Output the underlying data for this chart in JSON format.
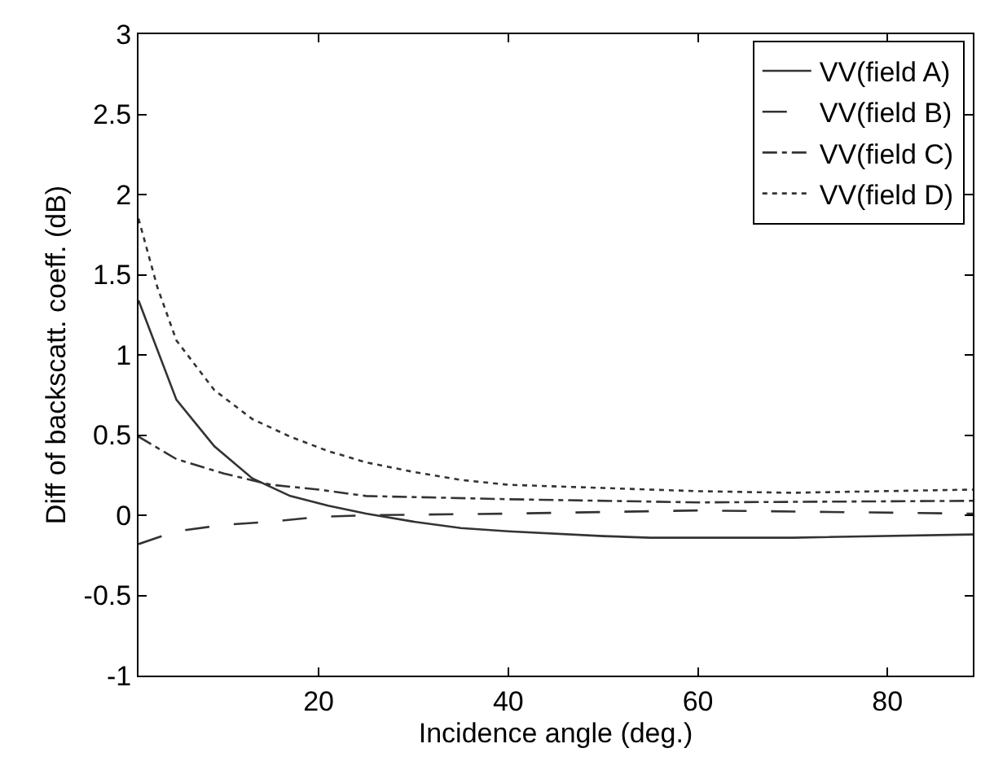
{
  "chart_data": {
    "type": "line",
    "xlabel": "Incidence angle (deg.)",
    "ylabel": "Diff of backscatt. coeff. (dB)",
    "xlim": [
      1,
      89
    ],
    "xticks": [
      20,
      40,
      60,
      80
    ],
    "ylim": [
      -1,
      3
    ],
    "yticks": [
      -1,
      -0.5,
      0,
      0.5,
      1,
      1.5,
      2,
      2.5,
      3
    ],
    "legend": "top right",
    "marker": "none",
    "series": [
      {
        "name": "VV(field A)",
        "color": "#333333",
        "line_style": "solid",
        "x": [
          1,
          5,
          9,
          13,
          17,
          21,
          25,
          30,
          35,
          40,
          50,
          55,
          70,
          89
        ],
        "values": [
          1.34,
          0.72,
          0.43,
          0.23,
          0.12,
          0.06,
          0.01,
          -0.04,
          -0.08,
          -0.1,
          -0.13,
          -0.14,
          -0.14,
          -0.12
        ]
      },
      {
        "name": "VV(field B)",
        "color": "#333333",
        "line_style": "longdash",
        "x": [
          1,
          5,
          10,
          15,
          20,
          25,
          40,
          60,
          89
        ],
        "values": [
          -0.18,
          -0.1,
          -0.06,
          -0.04,
          -0.01,
          0,
          0.01,
          0.03,
          0.01
        ]
      },
      {
        "name": "VV(field C)",
        "color": "#333333",
        "line_style": "dashdot",
        "x": [
          1,
          5,
          10,
          15,
          20,
          25,
          40,
          60,
          89
        ],
        "values": [
          0.49,
          0.35,
          0.26,
          0.19,
          0.16,
          0.12,
          0.1,
          0.08,
          0.09
        ]
      },
      {
        "name": "VV(field D)",
        "color": "#333333",
        "line_style": "dotted",
        "x": [
          1,
          3,
          5,
          9,
          13,
          17,
          21,
          25,
          30,
          35,
          40,
          50,
          60,
          70,
          89
        ],
        "values": [
          1.85,
          1.42,
          1.09,
          0.78,
          0.6,
          0.49,
          0.4,
          0.33,
          0.27,
          0.22,
          0.19,
          0.17,
          0.15,
          0.14,
          0.16
        ]
      }
    ]
  }
}
